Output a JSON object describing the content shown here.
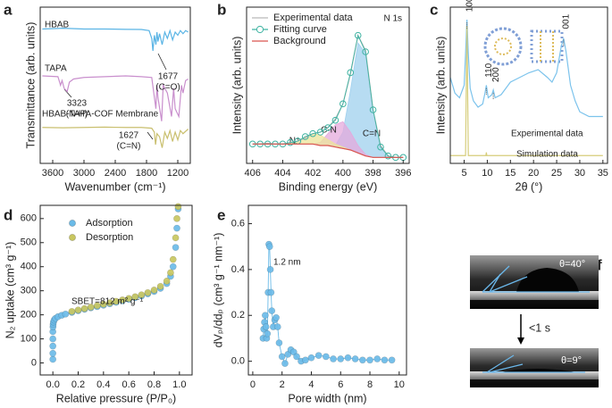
{
  "chart_data": [
    {
      "type": "line",
      "label": "a",
      "xlabel": "Wavenumber (cm⁻¹)",
      "ylabel": "Transmittance (arb. units)",
      "xlim": [
        3840,
        960
      ],
      "xticks": [
        3600,
        3000,
        2400,
        1800,
        1200
      ],
      "ylim": [
        0,
        1
      ],
      "series": [
        {
          "name": "HBAB",
          "color": "#5ab4e5",
          "x": [
            3800,
            3400,
            3000,
            2600,
            2200,
            1900,
            1750,
            1700,
            1677,
            1650,
            1620,
            1600,
            1580,
            1550,
            1500,
            1450,
            1400,
            1350,
            1300,
            1250,
            1200,
            1150,
            1100,
            1050,
            1000
          ],
          "values": [
            0.86,
            0.865,
            0.86,
            0.86,
            0.858,
            0.857,
            0.85,
            0.8,
            0.72,
            0.82,
            0.76,
            0.84,
            0.78,
            0.83,
            0.76,
            0.84,
            0.8,
            0.85,
            0.79,
            0.84,
            0.82,
            0.85,
            0.83,
            0.85,
            0.84
          ]
        },
        {
          "name": "TAPA",
          "color": "#c98fcd",
          "x": [
            3800,
            3500,
            3450,
            3420,
            3380,
            3323,
            3280,
            3200,
            3000,
            2600,
            2200,
            1900,
            1700,
            1620,
            1600,
            1580,
            1510,
            1480,
            1400,
            1320,
            1280,
            1250,
            1180,
            1130,
            1100,
            1050,
            1000
          ],
          "values": [
            0.56,
            0.555,
            0.5,
            0.53,
            0.48,
            0.46,
            0.52,
            0.54,
            0.55,
            0.555,
            0.56,
            0.555,
            0.55,
            0.35,
            0.5,
            0.42,
            0.27,
            0.5,
            0.45,
            0.3,
            0.48,
            0.35,
            0.3,
            0.5,
            0.45,
            0.53,
            0.54
          ]
        },
        {
          "name": "HBAB-TAPA-COF Membrane",
          "color": "#c9bf6e",
          "x": [
            3800,
            3400,
            3000,
            2600,
            2200,
            1900,
            1700,
            1650,
            1627,
            1600,
            1550,
            1500,
            1450,
            1400,
            1350,
            1300,
            1250,
            1200,
            1150,
            1100,
            1000
          ],
          "values": [
            0.23,
            0.228,
            0.23,
            0.232,
            0.23,
            0.23,
            0.225,
            0.2,
            0.12,
            0.19,
            0.17,
            0.1,
            0.2,
            0.16,
            0.21,
            0.14,
            0.2,
            0.15,
            0.21,
            0.19,
            0.22
          ]
        }
      ],
      "annotations": [
        "1677",
        "(C=O)",
        "3323",
        "(N-H)",
        "1627",
        "(C=N)"
      ]
    },
    {
      "type": "line",
      "label": "b",
      "xlabel": "Binding energy (eV)",
      "ylabel": "Intensity (arb. units)",
      "xlim": [
        406.4,
        395.6
      ],
      "xticks": [
        406,
        404,
        402,
        400,
        398,
        396
      ],
      "ylim": [
        0,
        1.05
      ],
      "legend": "upper left",
      "x": [
        406,
        405.5,
        405,
        404.5,
        404,
        403.5,
        403,
        402.5,
        402,
        401.5,
        401,
        400.5,
        400,
        399.5,
        399,
        398.5,
        398,
        397.5,
        397,
        396.5,
        396
      ],
      "series": [
        {
          "name": "Experimental data",
          "color": "#b9b9b9",
          "style": "line",
          "values": [
            0.13,
            0.13,
            0.135,
            0.13,
            0.13,
            0.14,
            0.15,
            0.17,
            0.2,
            0.21,
            0.24,
            0.3,
            0.4,
            0.6,
            0.86,
            0.76,
            0.36,
            0.12,
            0.05,
            0.04,
            0.04
          ]
        },
        {
          "name": "Fitting curve",
          "color": "#3fb3a2",
          "style": "line+markers",
          "marker": "open",
          "values": [
            0.13,
            0.13,
            0.13,
            0.13,
            0.13,
            0.14,
            0.15,
            0.18,
            0.2,
            0.21,
            0.24,
            0.29,
            0.4,
            0.61,
            0.86,
            0.75,
            0.36,
            0.11,
            0.05,
            0.04,
            0.04
          ]
        },
        {
          "name": "Background",
          "color": "#d9534f",
          "style": "line",
          "values": [
            0.13,
            0.13,
            0.13,
            0.13,
            0.13,
            0.13,
            0.13,
            0.13,
            0.13,
            0.12,
            0.12,
            0.11,
            0.1,
            0.09,
            0.07,
            0.05,
            0.04,
            0.04,
            0.04,
            0.04,
            0.04
          ]
        }
      ],
      "areas": [
        {
          "name": "C=N",
          "color": "#9fd0ee",
          "values": [
            0,
            0,
            0,
            0,
            0,
            0,
            0,
            0,
            0,
            0,
            0,
            0.01,
            0.11,
            0.4,
            0.74,
            0.69,
            0.32,
            0.07,
            0.01,
            0,
            0
          ]
        },
        {
          "name": "C-N",
          "color": "#e4a9dc",
          "values": [
            0,
            0,
            0,
            0,
            0,
            0,
            0,
            0,
            0,
            0.02,
            0.08,
            0.15,
            0.18,
            0.12,
            0.05,
            0.01,
            0,
            0,
            0,
            0,
            0
          ]
        },
        {
          "name": "N⁺",
          "color": "#ece49a",
          "values": [
            0,
            0,
            0,
            0,
            0,
            0.01,
            0.02,
            0.05,
            0.07,
            0.07,
            0.04,
            0.02,
            0.01,
            0,
            0,
            0,
            0,
            0,
            0,
            0,
            0
          ]
        }
      ],
      "annotations": [
        "N 1s"
      ]
    },
    {
      "type": "line",
      "label": "c",
      "xlabel": "2θ (°)",
      "ylabel": "Intensity (arb. units)",
      "xlim": [
        2,
        36
      ],
      "xticks": [
        5,
        10,
        15,
        20,
        25,
        30,
        35
      ],
      "ylim": [
        0,
        1
      ],
      "series": [
        {
          "name": "Experimental data",
          "color": "#7cc3ec",
          "x": [
            2,
            3,
            4,
            5,
            5.3,
            5.6,
            5.9,
            6.3,
            7,
            8,
            9,
            9.5,
            9.8,
            10.2,
            11,
            11.3,
            11.7,
            13,
            15,
            17,
            19,
            21,
            23,
            24,
            25,
            26,
            26.5,
            27,
            28,
            29,
            30,
            32,
            34,
            35
          ],
          "values": [
            0.55,
            0.45,
            0.42,
            0.5,
            0.7,
            0.92,
            0.7,
            0.48,
            0.4,
            0.36,
            0.38,
            0.45,
            0.5,
            0.42,
            0.44,
            0.47,
            0.42,
            0.44,
            0.52,
            0.55,
            0.58,
            0.6,
            0.55,
            0.52,
            0.58,
            0.75,
            0.8,
            0.72,
            0.5,
            0.4,
            0.33,
            0.3,
            0.3,
            0.3
          ]
        },
        {
          "name": "Simulation data",
          "color": "#d6cd7a",
          "x": [
            2,
            5.3,
            5.6,
            5.9,
            9.7,
            9.8,
            9.9,
            35
          ],
          "values": [
            0.05,
            0.05,
            0.88,
            0.05,
            0.05,
            0.07,
            0.05,
            0.05
          ]
        }
      ],
      "annotations": [
        "100",
        "110",
        "200",
        "001"
      ]
    },
    {
      "type": "scatter",
      "label": "d",
      "xlabel": "Relative pressure (P/P₀)",
      "ylabel": "N₂ uptake (cm³ g⁻¹)",
      "xlim": [
        -0.1,
        1.1
      ],
      "xticks": [
        {
          "value": 0,
          "label": "0.0"
        },
        {
          "value": 0.2,
          "label": "0.2"
        },
        {
          "value": 0.4,
          "label": "0.4"
        },
        {
          "value": 0.6,
          "label": "0.6"
        },
        {
          "value": 0.8,
          "label": "0.8"
        },
        {
          "value": 1,
          "label": "1.0"
        }
      ],
      "ylim": [
        -50,
        655
      ],
      "yticks": [
        0,
        100,
        200,
        300,
        400,
        500,
        600
      ],
      "legend": "upper left",
      "series": [
        {
          "name": "Adsorption",
          "color": "#6bbbe8",
          "x": [
            0,
            0,
            0,
            0,
            0,
            0.001,
            0.002,
            0.005,
            0.01,
            0.02,
            0.04,
            0.07,
            0.1,
            0.15,
            0.2,
            0.25,
            0.3,
            0.35,
            0.4,
            0.45,
            0.5,
            0.55,
            0.6,
            0.65,
            0.7,
            0.75,
            0.8,
            0.85,
            0.9,
            0.93,
            0.95,
            0.97,
            0.98,
            0.99
          ],
          "values": [
            15,
            40,
            70,
            100,
            130,
            150,
            160,
            170,
            178,
            185,
            192,
            198,
            203,
            210,
            217,
            223,
            229,
            234,
            240,
            246,
            252,
            258,
            264,
            271,
            278,
            287,
            297,
            310,
            330,
            360,
            400,
            480,
            560,
            640
          ]
        },
        {
          "name": "Desorption",
          "color": "#c9c760",
          "x": [
            0.99,
            0.98,
            0.97,
            0.95,
            0.93,
            0.9,
            0.85,
            0.8,
            0.75,
            0.7,
            0.65,
            0.6,
            0.55,
            0.5,
            0.45,
            0.4,
            0.35,
            0.3,
            0.25,
            0.2,
            0.15
          ],
          "values": [
            650,
            600,
            520,
            430,
            375,
            340,
            318,
            303,
            292,
            283,
            275,
            268,
            262,
            256,
            250,
            244,
            238,
            232,
            226,
            220,
            214
          ]
        }
      ],
      "annotations": [
        "SBET=812 m² g⁻¹"
      ]
    },
    {
      "type": "scatter",
      "label": "e",
      "xlabel": "Pore width (nm)",
      "ylabel": "dVₚ/ddₚ (cm³ g⁻¹ nm⁻¹)",
      "xlim": [
        -0.3,
        10.5
      ],
      "xticks": [
        0,
        2,
        4,
        6,
        8,
        10
      ],
      "ylim": [
        -0.06,
        0.68
      ],
      "yticks": [
        {
          "value": 0,
          "label": "0.0"
        },
        {
          "value": 0.2,
          "label": "0.2"
        },
        {
          "value": 0.4,
          "label": "0.4"
        },
        {
          "value": 0.6,
          "label": "0.6"
        }
      ],
      "series": [
        {
          "color": "#6bbbe8",
          "style": "line+markers",
          "x": [
            0.7,
            0.75,
            0.8,
            0.85,
            0.9,
            0.95,
            1,
            1.05,
            1.1,
            1.15,
            1.2,
            1.25,
            1.3,
            1.4,
            1.5,
            1.6,
            1.7,
            1.8,
            2,
            2.2,
            2.4,
            2.6,
            2.8,
            3,
            3.3,
            3.6,
            4,
            4.5,
            5,
            5.5,
            6,
            6.5,
            7,
            7.5,
            8,
            8.5,
            9,
            9.5
          ],
          "values": [
            0.1,
            0.14,
            0.17,
            0.2,
            0.15,
            0.1,
            0.12,
            0.3,
            0.51,
            0.5,
            0.4,
            0.3,
            0.22,
            0.15,
            0.18,
            0.19,
            0.15,
            0.08,
            0.02,
            -0.01,
            0.03,
            0.05,
            0.04,
            0.02,
            0,
            0.005,
            0.015,
            0.025,
            0.02,
            0.01,
            0.01,
            0.015,
            0.01,
            0.005,
            0.005,
            0.01,
            0.005,
            0.005
          ]
        }
      ],
      "annotations": [
        "1.2 nm"
      ]
    }
  ],
  "contact_angle": {
    "label": "f",
    "before": "θ=40°",
    "interval": "<1 s",
    "after": "θ=9°"
  }
}
